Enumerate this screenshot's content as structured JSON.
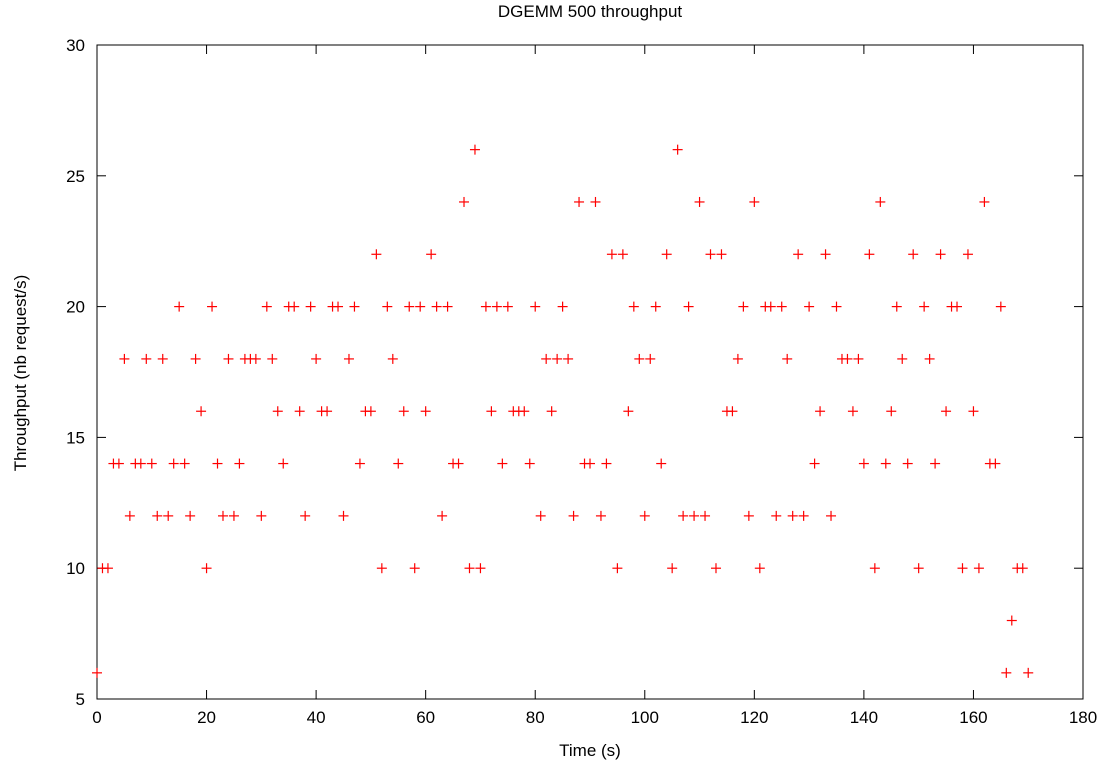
{
  "chart_data": {
    "type": "scatter",
    "title": "DGEMM 500 throughput",
    "xlabel": "Time (s)",
    "ylabel": "Throughput (nb request/s)",
    "xlim": [
      0,
      180
    ],
    "ylim": [
      5,
      30
    ],
    "xticks": [
      0,
      20,
      40,
      60,
      80,
      100,
      120,
      140,
      160,
      180
    ],
    "yticks": [
      5,
      10,
      15,
      20,
      25,
      30
    ],
    "grid": false,
    "marker": "plus",
    "color": "#ff0000",
    "x": [
      0,
      1,
      2,
      3,
      4,
      5,
      6,
      7,
      8,
      9,
      10,
      11,
      12,
      13,
      14,
      15,
      16,
      17,
      18,
      19,
      20,
      21,
      22,
      23,
      24,
      25,
      26,
      27,
      28,
      29,
      30,
      31,
      32,
      33,
      34,
      35,
      36,
      37,
      38,
      39,
      40,
      41,
      42,
      43,
      44,
      45,
      46,
      47,
      48,
      49,
      50,
      51,
      52,
      53,
      54,
      55,
      56,
      57,
      58,
      59,
      60,
      61,
      62,
      63,
      64,
      65,
      66,
      67,
      68,
      69,
      70,
      71,
      72,
      73,
      74,
      75,
      76,
      77,
      78,
      79,
      80,
      81,
      82,
      83,
      84,
      85,
      86,
      87,
      88,
      89,
      90,
      91,
      92,
      93,
      94,
      95,
      96,
      97,
      98,
      99,
      100,
      101,
      102,
      103,
      104,
      105,
      106,
      107,
      108,
      109,
      110,
      111,
      112,
      113,
      114,
      115,
      116,
      117,
      118,
      119,
      120,
      121,
      122,
      123,
      124,
      125,
      126,
      127,
      128,
      129,
      130,
      131,
      132,
      133,
      134,
      135,
      136,
      137,
      138,
      139,
      140,
      141,
      142,
      143,
      144,
      145,
      146,
      147,
      148,
      149,
      150,
      151,
      152,
      153,
      154,
      155,
      156,
      157,
      158,
      159,
      160,
      161,
      162,
      163,
      164,
      165,
      166,
      167,
      168,
      169,
      170
    ],
    "y": [
      6,
      10,
      10,
      14,
      14,
      18,
      12,
      14,
      14,
      18,
      14,
      12,
      18,
      12,
      14,
      20,
      14,
      12,
      18,
      16,
      10,
      20,
      14,
      12,
      18,
      12,
      14,
      18,
      18,
      18,
      12,
      20,
      18,
      16,
      14,
      20,
      20,
      16,
      12,
      20,
      18,
      16,
      16,
      20,
      20,
      12,
      18,
      20,
      14,
      16,
      16,
      22,
      10,
      20,
      18,
      14,
      16,
      20,
      10,
      20,
      16,
      22,
      20,
      12,
      20,
      14,
      14,
      24,
      10,
      26,
      10,
      20,
      16,
      20,
      14,
      20,
      16,
      16,
      16,
      14,
      20,
      12,
      18,
      16,
      18,
      20,
      18,
      12,
      24,
      14,
      14,
      24,
      12,
      14,
      22,
      10,
      22,
      16,
      20,
      18,
      12,
      18,
      20,
      14,
      22,
      10,
      26,
      12,
      20,
      12,
      24,
      12,
      22,
      10,
      22,
      16,
      16,
      18,
      20,
      12,
      24,
      10,
      20,
      20,
      12,
      20,
      18,
      12,
      22,
      12,
      20,
      14,
      16,
      22,
      12,
      20,
      18,
      18,
      16,
      18,
      14,
      22,
      10,
      24,
      14,
      16,
      20,
      18,
      14,
      22,
      10,
      20,
      18,
      14,
      22,
      16,
      20,
      20,
      10,
      22,
      16,
      10,
      24,
      14,
      14,
      20,
      6,
      8,
      10,
      10,
      6
    ]
  }
}
